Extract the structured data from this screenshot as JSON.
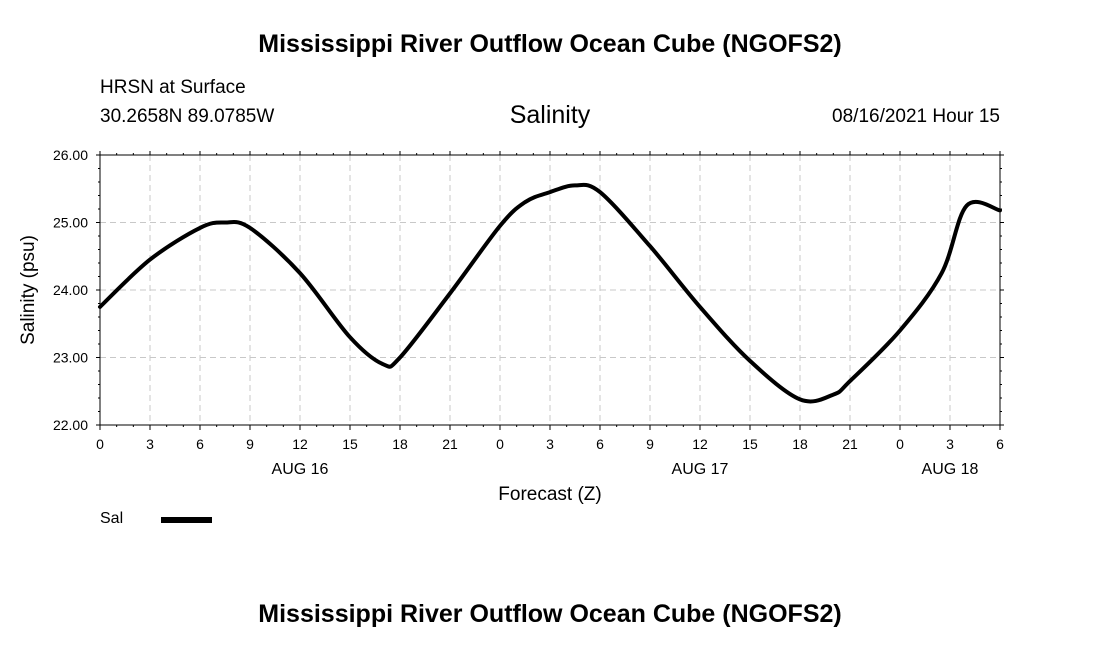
{
  "header": {
    "title": "Mississippi River Outflow Ocean Cube (NGOFS2)",
    "station": "HRSN at Surface",
    "coords": "30.2658N  89.0785W",
    "variable": "Salinity",
    "timestamp": "08/16/2021 Hour 15"
  },
  "footer": {
    "title": "Mississippi River Outflow Ocean Cube (NGOFS2)"
  },
  "chart_data": {
    "type": "line",
    "xlabel": "Forecast (Z)",
    "ylabel": "Salinity (psu)",
    "xlim": [
      0,
      54
    ],
    "ylim": [
      22.0,
      26.0
    ],
    "grid": true,
    "x_ticks": [
      0,
      3,
      6,
      9,
      12,
      15,
      18,
      21,
      24,
      27,
      30,
      33,
      36,
      39,
      42,
      45,
      48,
      51,
      54
    ],
    "x_tick_labels": [
      "0",
      "3",
      "6",
      "9",
      "12",
      "15",
      "18",
      "21",
      "0",
      "3",
      "6",
      "9",
      "12",
      "15",
      "18",
      "21",
      "0",
      "3",
      "6"
    ],
    "y_ticks": [
      22,
      23,
      24,
      25,
      26
    ],
    "y_tick_labels": [
      "22.00",
      "23.00",
      "24.00",
      "25.00",
      "26.00"
    ],
    "date_labels": [
      {
        "x": 12,
        "label": "AUG 16"
      },
      {
        "x": 36,
        "label": "AUG 17"
      },
      {
        "x": 51,
        "label": "AUG 18"
      }
    ],
    "legend": {
      "placement": "bottom-left"
    },
    "series": [
      {
        "name": "Sal",
        "color": "#000000",
        "x": [
          0,
          3,
          6,
          7.5,
          9,
          12,
          15,
          17,
          18,
          21,
          24,
          25.5,
          27,
          28.5,
          30,
          33,
          36,
          39,
          42,
          44,
          45,
          48,
          50.5,
          52,
          54
        ],
        "y": [
          23.75,
          24.45,
          24.92,
          25.0,
          24.92,
          24.25,
          23.3,
          22.9,
          23.0,
          23.95,
          24.95,
          25.3,
          25.45,
          25.55,
          25.45,
          24.65,
          23.75,
          22.95,
          22.38,
          22.45,
          22.65,
          23.4,
          24.25,
          25.25,
          25.18
        ]
      }
    ]
  }
}
